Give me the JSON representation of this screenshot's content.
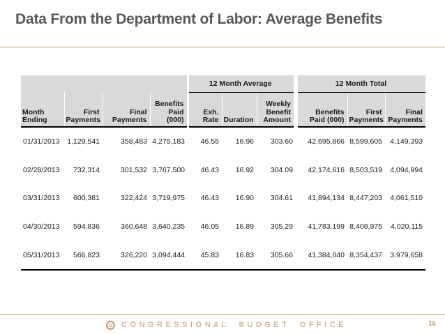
{
  "slide": {
    "title": "Data From the Department of Labor: Average Benefits",
    "footer": {
      "org": "CONGRESSIONAL BUDGET OFFICE",
      "page_number": "16"
    }
  },
  "colors": {
    "accent_tan": "#C49A6B",
    "title_gray": "#575757",
    "header_fill": "#D9D9D9",
    "rule_tan": "#BFA06F"
  },
  "table": {
    "group_headers": [
      {
        "label": "",
        "span": 4
      },
      {
        "label": "12 Month Average",
        "span": 3
      },
      {
        "label": "12 Month Total",
        "span": 3
      }
    ],
    "columns": [
      "Month\nEnding",
      "First\nPayments",
      "Final\nPayments",
      "Benefits\nPaid (000)",
      "Exh.\nRate",
      "Duration",
      "Weekly\nBenefit\nAmount",
      "Benefits\nPaid (000)",
      "First\nPayments",
      "Final\nPayments"
    ],
    "rows": [
      [
        "01/31/2013",
        "1,129,541",
        "358,483",
        "4,275,183",
        "46.55",
        "16.96",
        "303.60",
        "42,695,866",
        "8,599,605",
        "4,149,393"
      ],
      [
        "02/28/2013",
        "732,314",
        "301,532",
        "3,767,500",
        "46.43",
        "16.92",
        "304.09",
        "42,174,616",
        "8,503,519",
        "4,094,994"
      ],
      [
        "03/31/2013",
        "600,381",
        "322,424",
        "3,719,975",
        "46.43",
        "16.90",
        "304.61",
        "41,894,134",
        "8,447,203",
        "4,061,510"
      ],
      [
        "04/30/2013",
        "594,836",
        "360,648",
        "3,640,235",
        "46.05",
        "16.89",
        "305.29",
        "41,783,199",
        "8,408,975",
        "4,020,115"
      ],
      [
        "05/31/2013",
        "566,823",
        "326,220",
        "3,094,444",
        "45.83",
        "16.83",
        "305.66",
        "41,384,040",
        "8,354,437",
        "3,979,658"
      ]
    ]
  }
}
